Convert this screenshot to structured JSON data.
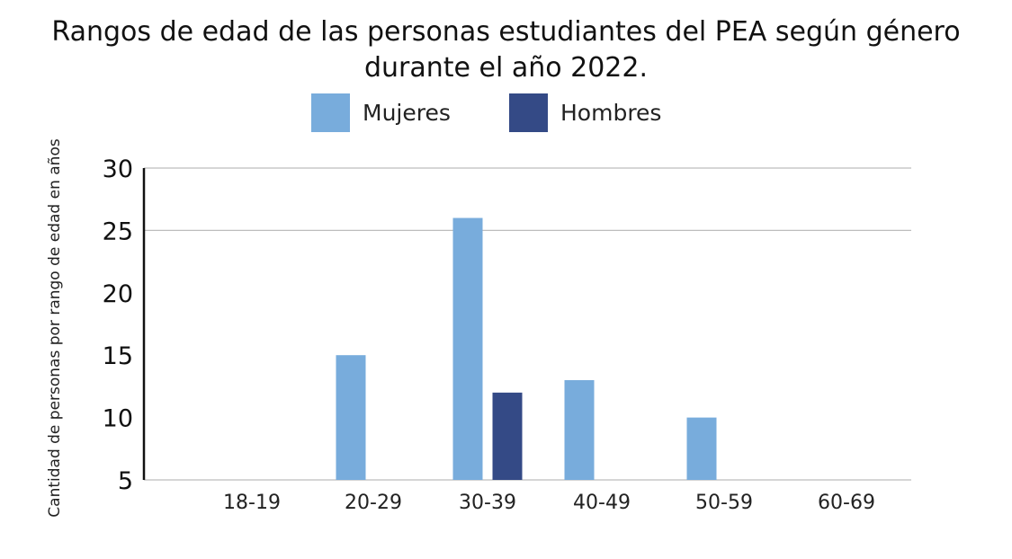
{
  "chart_data": {
    "type": "bar",
    "title_lines": [
      "Rangos de edad de las personas estudiantes del PEA según género",
      "durante el año 2022."
    ],
    "ylabel": "Cantidad de personas por rango de edad en años",
    "xlabel": "",
    "categories": [
      "18-19",
      "20-29",
      "30-39",
      "40-49",
      "50-59",
      "60-69"
    ],
    "series": [
      {
        "name": "Mujeres",
        "color": "#78acdc",
        "values": [
          null,
          15,
          26,
          13,
          10,
          null
        ]
      },
      {
        "name": "Hombres",
        "color": "#344a86",
        "values": [
          null,
          null,
          12,
          null,
          null,
          null
        ]
      }
    ],
    "ylim": [
      5,
      30
    ],
    "yticks": [
      5,
      10,
      15,
      20,
      25,
      30
    ],
    "gridlines_at": [
      25,
      30
    ],
    "legend_position": "top"
  }
}
